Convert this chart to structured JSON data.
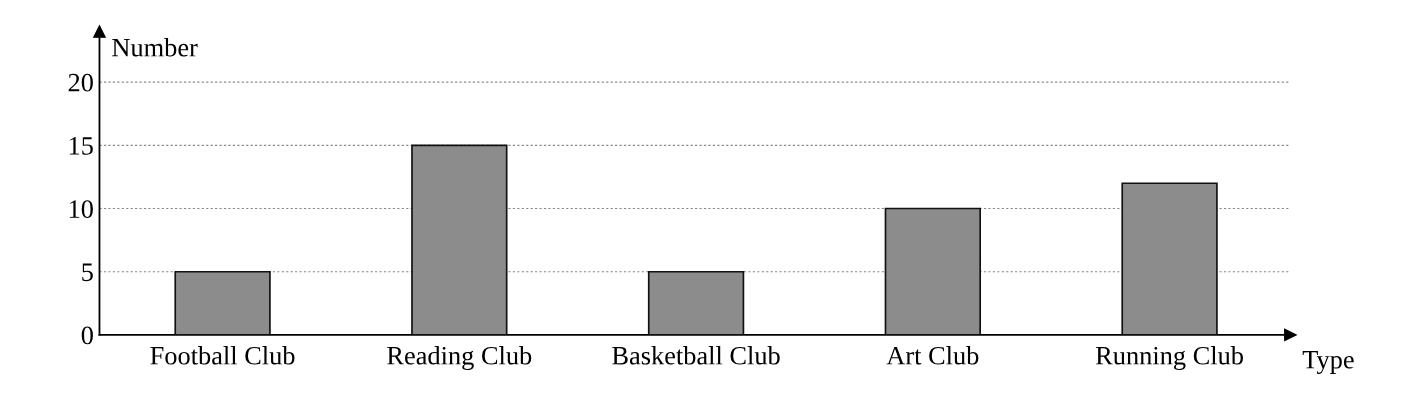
{
  "chart_data": {
    "type": "bar",
    "categories": [
      "Football Club",
      "Reading Club",
      "Basketball Club",
      "Art Club",
      "Running Club"
    ],
    "values": [
      5,
      15,
      5,
      10,
      12
    ],
    "color": "#8c8c8c",
    "xlabel": "Type",
    "ylabel": "Number",
    "ylim": [
      0,
      24
    ],
    "yticks": [
      0,
      5,
      10,
      15,
      20
    ],
    "grid": "y"
  }
}
